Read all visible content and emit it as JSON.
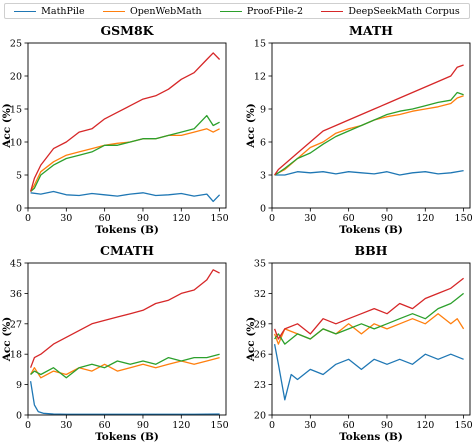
{
  "legend": [
    {
      "name": "MathPile",
      "color": "#1f77b4"
    },
    {
      "name": "OpenWebMath",
      "color": "#ff7f0e"
    },
    {
      "name": "Proof-Pile-2",
      "color": "#2ca02c"
    },
    {
      "name": "DeepSeekMath Corpus",
      "color": "#d62728"
    }
  ],
  "chart_data": [
    {
      "type": "line",
      "title": "GSM8K",
      "xlabel": "Tokens (B)",
      "ylabel": "Acc (%)",
      "xlim": [
        0,
        155
      ],
      "ylim": [
        0,
        25
      ],
      "xticks": [
        0,
        30,
        60,
        90,
        120,
        150
      ],
      "yticks": [
        0,
        5,
        10,
        15,
        20,
        25
      ],
      "series": [
        {
          "name": "MathPile",
          "x": [
            2,
            10,
            20,
            30,
            40,
            50,
            60,
            70,
            80,
            90,
            100,
            110,
            120,
            130,
            140,
            145,
            150
          ],
          "values": [
            2.3,
            2.1,
            2.5,
            2.0,
            1.9,
            2.2,
            2.0,
            1.8,
            2.1,
            2.3,
            1.9,
            2.0,
            2.2,
            1.8,
            2.1,
            1.0,
            2.0
          ]
        },
        {
          "name": "OpenWebMath",
          "x": [
            2,
            5,
            10,
            20,
            30,
            40,
            50,
            60,
            70,
            80,
            90,
            100,
            110,
            120,
            130,
            140,
            145,
            150
          ],
          "values": [
            2.5,
            3.5,
            5.5,
            7.0,
            8.0,
            8.5,
            9.0,
            9.5,
            9.8,
            10.0,
            10.5,
            10.5,
            11.0,
            11.0,
            11.5,
            12.0,
            11.5,
            12.0
          ]
        },
        {
          "name": "Proof-Pile-2",
          "x": [
            2,
            5,
            10,
            20,
            30,
            40,
            50,
            60,
            70,
            80,
            90,
            100,
            110,
            120,
            130,
            140,
            145,
            150
          ],
          "values": [
            2.5,
            3.0,
            5.0,
            6.5,
            7.5,
            8.0,
            8.5,
            9.5,
            9.5,
            10.0,
            10.5,
            10.5,
            11.0,
            11.5,
            12.0,
            14.0,
            12.5,
            13.0
          ]
        },
        {
          "name": "DeepSeekMath Corpus",
          "x": [
            2,
            5,
            10,
            20,
            30,
            40,
            50,
            60,
            70,
            80,
            90,
            100,
            110,
            120,
            130,
            140,
            145,
            150
          ],
          "values": [
            2.5,
            4.5,
            6.5,
            9.0,
            10.0,
            11.5,
            12.0,
            13.5,
            14.5,
            15.5,
            16.5,
            17.0,
            18.0,
            19.5,
            20.5,
            22.5,
            23.5,
            22.5
          ]
        }
      ]
    },
    {
      "type": "line",
      "title": "MATH",
      "xlabel": "Tokens (B)",
      "ylabel": "Acc (%)",
      "xlim": [
        0,
        155
      ],
      "ylim": [
        0,
        15
      ],
      "xticks": [
        0,
        30,
        60,
        90,
        120,
        150
      ],
      "yticks": [
        0,
        3,
        6,
        9,
        12,
        15
      ],
      "series": [
        {
          "name": "MathPile",
          "x": [
            2,
            10,
            20,
            30,
            40,
            50,
            60,
            70,
            80,
            90,
            100,
            110,
            120,
            130,
            140,
            150
          ],
          "values": [
            3.0,
            3.0,
            3.3,
            3.2,
            3.3,
            3.1,
            3.3,
            3.2,
            3.1,
            3.3,
            3.0,
            3.2,
            3.3,
            3.1,
            3.2,
            3.4
          ]
        },
        {
          "name": "OpenWebMath",
          "x": [
            2,
            5,
            10,
            20,
            30,
            40,
            50,
            60,
            70,
            80,
            90,
            100,
            110,
            120,
            130,
            140,
            145,
            150
          ],
          "values": [
            3.0,
            3.2,
            3.5,
            4.5,
            5.5,
            6.0,
            6.8,
            7.2,
            7.5,
            8.0,
            8.3,
            8.5,
            8.8,
            9.0,
            9.2,
            9.5,
            10.0,
            10.2
          ]
        },
        {
          "name": "Proof-Pile-2",
          "x": [
            2,
            5,
            10,
            20,
            30,
            40,
            50,
            60,
            70,
            80,
            90,
            100,
            110,
            120,
            130,
            140,
            145,
            150
          ],
          "values": [
            3.0,
            3.2,
            3.6,
            4.5,
            5.0,
            5.8,
            6.5,
            7.0,
            7.5,
            8.0,
            8.5,
            8.8,
            9.0,
            9.3,
            9.6,
            9.8,
            10.5,
            10.3
          ]
        },
        {
          "name": "DeepSeekMath Corpus",
          "x": [
            2,
            5,
            10,
            20,
            30,
            40,
            50,
            60,
            70,
            80,
            90,
            100,
            110,
            120,
            130,
            140,
            145,
            150
          ],
          "values": [
            3.0,
            3.5,
            4.0,
            5.0,
            6.0,
            7.0,
            7.5,
            8.0,
            8.5,
            9.0,
            9.5,
            10.0,
            10.5,
            11.0,
            11.5,
            12.0,
            12.8,
            13.0
          ]
        }
      ]
    },
    {
      "type": "line",
      "title": "CMATH",
      "xlabel": "Tokens (B)",
      "ylabel": "Acc (%)",
      "xlim": [
        0,
        155
      ],
      "ylim": [
        0,
        45
      ],
      "xticks": [
        0,
        30,
        60,
        90,
        120,
        150
      ],
      "yticks": [
        0,
        9,
        18,
        27,
        36,
        45
      ],
      "series": [
        {
          "name": "MathPile",
          "x": [
            2,
            5,
            8,
            12,
            20,
            30,
            50,
            70,
            90,
            110,
            130,
            150
          ],
          "values": [
            10.0,
            3.0,
            1.0,
            0.5,
            0.3,
            0.2,
            0.2,
            0.2,
            0.2,
            0.2,
            0.2,
            0.3
          ]
        },
        {
          "name": "OpenWebMath",
          "x": [
            2,
            5,
            10,
            20,
            30,
            40,
            50,
            60,
            70,
            80,
            90,
            100,
            110,
            120,
            130,
            140,
            150
          ],
          "values": [
            12.0,
            14.0,
            11.0,
            13.0,
            12.0,
            14.0,
            13.0,
            15.0,
            13.0,
            14.0,
            15.0,
            14.0,
            15.0,
            16.0,
            15.0,
            16.0,
            17.0
          ]
        },
        {
          "name": "Proof-Pile-2",
          "x": [
            2,
            5,
            10,
            20,
            30,
            40,
            50,
            60,
            70,
            80,
            90,
            100,
            110,
            120,
            130,
            140,
            150
          ],
          "values": [
            12.0,
            13.0,
            12.0,
            14.0,
            11.0,
            14.0,
            15.0,
            14.0,
            16.0,
            15.0,
            16.0,
            15.0,
            17.0,
            16.0,
            17.0,
            17.0,
            18.0
          ]
        },
        {
          "name": "DeepSeekMath Corpus",
          "x": [
            2,
            5,
            10,
            20,
            30,
            40,
            50,
            60,
            70,
            80,
            90,
            100,
            110,
            120,
            130,
            140,
            145,
            150
          ],
          "values": [
            14.0,
            17.0,
            18.0,
            21.0,
            23.0,
            25.0,
            27.0,
            28.0,
            29.0,
            30.0,
            31.0,
            33.0,
            34.0,
            36.0,
            37.0,
            40.0,
            43.0,
            42.0
          ]
        }
      ]
    },
    {
      "type": "line",
      "title": "BBH",
      "xlabel": "Tokens (B)",
      "ylabel": "Acc (%)",
      "xlim": [
        0,
        155
      ],
      "ylim": [
        20,
        35
      ],
      "xticks": [
        0,
        30,
        60,
        90,
        120,
        150
      ],
      "yticks": [
        20,
        23,
        26,
        29,
        32,
        35
      ],
      "series": [
        {
          "name": "MathPile",
          "x": [
            2,
            5,
            10,
            15,
            20,
            30,
            40,
            50,
            60,
            70,
            80,
            90,
            100,
            110,
            120,
            130,
            140,
            150
          ],
          "values": [
            27.0,
            25.0,
            21.5,
            24.0,
            23.5,
            24.5,
            24.0,
            25.0,
            25.5,
            24.5,
            25.5,
            25.0,
            25.5,
            25.0,
            26.0,
            25.5,
            26.0,
            25.5
          ]
        },
        {
          "name": "OpenWebMath",
          "x": [
            2,
            5,
            10,
            20,
            30,
            40,
            50,
            60,
            70,
            80,
            90,
            100,
            110,
            120,
            130,
            140,
            145,
            150
          ],
          "values": [
            28.0,
            27.0,
            28.5,
            28.0,
            27.5,
            28.5,
            28.0,
            29.0,
            28.0,
            29.0,
            28.5,
            29.0,
            29.5,
            29.0,
            30.0,
            29.0,
            29.5,
            28.5
          ]
        },
        {
          "name": "Proof-Pile-2",
          "x": [
            2,
            5,
            10,
            20,
            30,
            40,
            50,
            60,
            70,
            80,
            90,
            100,
            110,
            120,
            130,
            140,
            145,
            150
          ],
          "values": [
            27.5,
            28.0,
            27.0,
            28.0,
            27.5,
            28.5,
            28.0,
            28.5,
            29.0,
            28.5,
            29.0,
            29.5,
            30.0,
            29.5,
            30.5,
            31.0,
            31.5,
            32.0
          ]
        },
        {
          "name": "DeepSeekMath Corpus",
          "x": [
            2,
            5,
            10,
            20,
            30,
            40,
            50,
            60,
            70,
            80,
            90,
            100,
            110,
            120,
            130,
            140,
            145,
            150
          ],
          "values": [
            28.5,
            27.5,
            28.5,
            29.0,
            28.0,
            29.5,
            29.0,
            29.5,
            30.0,
            30.5,
            30.0,
            31.0,
            30.5,
            31.5,
            32.0,
            32.5,
            33.0,
            33.5
          ]
        }
      ]
    }
  ]
}
